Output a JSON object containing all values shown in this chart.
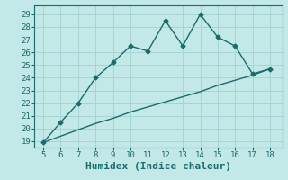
{
  "xlabel": "Humidex (Indice chaleur)",
  "ylabel": "",
  "bg_color": "#c2e8e8",
  "grid_color": "#a8d4d4",
  "line_color": "#1a6b6b",
  "xlim": [
    4.5,
    18.7
  ],
  "ylim": [
    18.5,
    29.7
  ],
  "xticks": [
    5,
    6,
    7,
    8,
    9,
    10,
    11,
    12,
    13,
    14,
    15,
    16,
    17,
    18
  ],
  "yticks": [
    19,
    20,
    21,
    22,
    23,
    24,
    25,
    26,
    27,
    28,
    29
  ],
  "curve_x": [
    5,
    6,
    7,
    8,
    9,
    10,
    11,
    12,
    13,
    14,
    15,
    16,
    17,
    18
  ],
  "curve_y": [
    18.9,
    20.5,
    22.0,
    24.0,
    25.2,
    26.5,
    26.1,
    28.5,
    26.5,
    29.0,
    27.2,
    26.5,
    24.3,
    24.7
  ],
  "line_x": [
    5,
    6,
    7,
    8,
    9,
    10,
    11,
    12,
    13,
    14,
    15,
    16,
    17,
    18
  ],
  "line_y": [
    18.9,
    19.4,
    19.9,
    20.4,
    20.8,
    21.3,
    21.7,
    22.1,
    22.5,
    22.9,
    23.4,
    23.8,
    24.2,
    24.7
  ],
  "font_color": "#1a6b6b",
  "xlabel_fontsize": 8,
  "tick_fontsize": 6.5,
  "marker": "D",
  "marker_size": 2.5,
  "linewidth": 1.0
}
